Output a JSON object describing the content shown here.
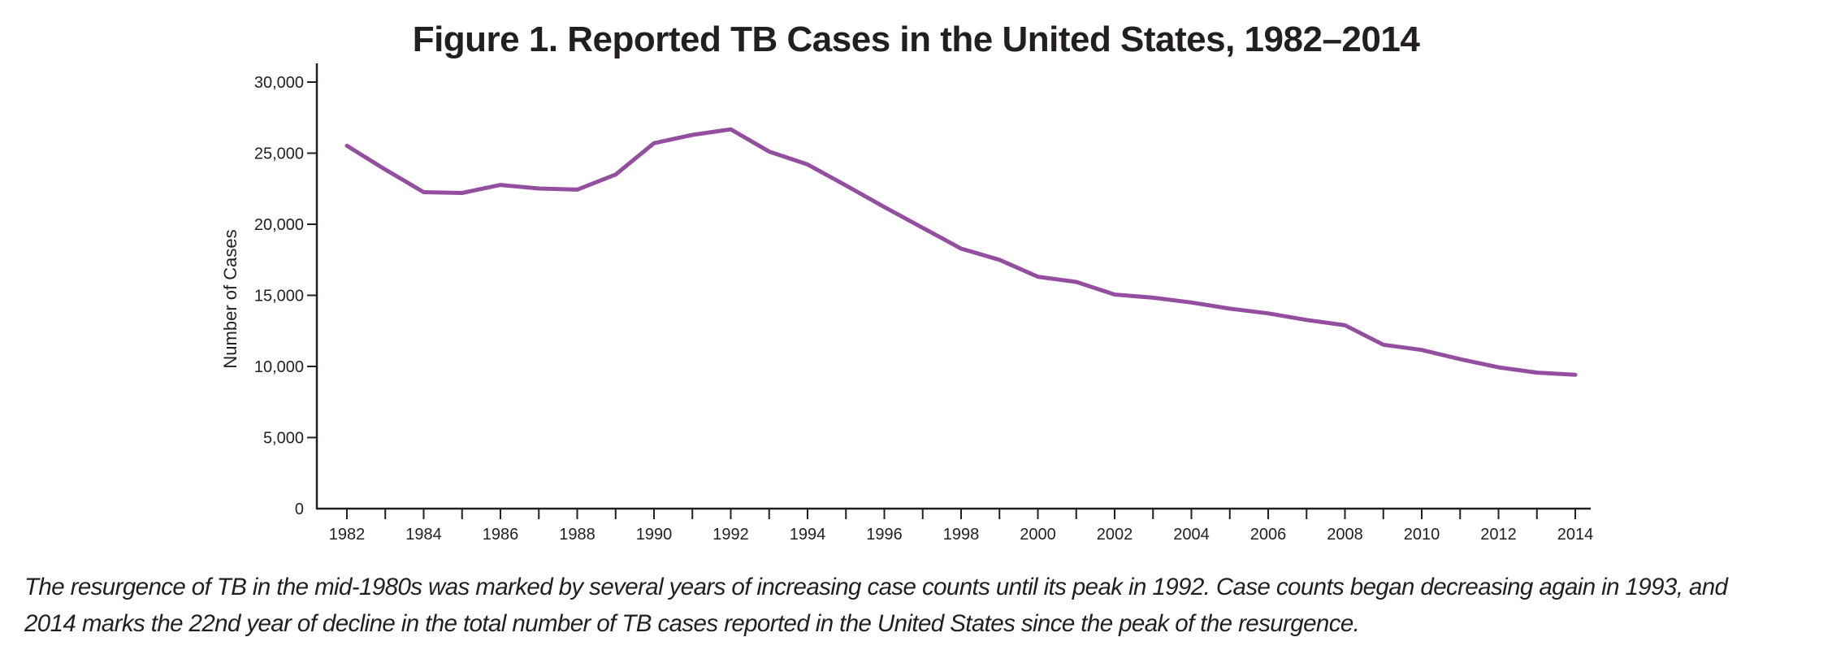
{
  "chart_data": {
    "type": "line",
    "title": "Figure 1. Reported TB Cases in the United States, 1982–2014",
    "xlabel": "",
    "ylabel": "Number of Cases",
    "xlim": [
      1982,
      2014
    ],
    "ylim": [
      0,
      30000
    ],
    "grid": false,
    "legend": "none",
    "x_ticks": [
      1982,
      1983,
      1984,
      1985,
      1986,
      1987,
      1988,
      1989,
      1990,
      1991,
      1992,
      1993,
      1994,
      1995,
      1996,
      1997,
      1998,
      1999,
      2000,
      2001,
      2002,
      2003,
      2004,
      2005,
      2006,
      2007,
      2008,
      2009,
      2010,
      2011,
      2012,
      2013,
      2014
    ],
    "x_tick_labels": [
      "1982",
      "1984",
      "1986",
      "1988",
      "1990",
      "1992",
      "1994",
      "1996",
      "1998",
      "2000",
      "2002",
      "2004",
      "2006",
      "2008",
      "2010",
      "2012",
      "2014"
    ],
    "y_ticks": [
      0,
      5000,
      10000,
      15000,
      20000,
      25000,
      30000
    ],
    "y_tick_labels": [
      "0",
      "5,000",
      "10,000",
      "15,000",
      "20,000",
      "25,000",
      "30,000"
    ],
    "series": [
      {
        "name": "Reported TB cases",
        "color": "#944ea0",
        "x": [
          1982,
          1983,
          1984,
          1985,
          1986,
          1987,
          1988,
          1989,
          1990,
          1991,
          1992,
          1993,
          1994,
          1995,
          1996,
          1997,
          1998,
          1999,
          2000,
          2001,
          2002,
          2003,
          2004,
          2005,
          2006,
          2007,
          2008,
          2009,
          2010,
          2011,
          2012,
          2013,
          2014
        ],
        "values": [
          25520,
          23846,
          22255,
          22201,
          22768,
          22517,
          22436,
          23495,
          25701,
          26283,
          26673,
          25107,
          24205,
          22727,
          21210,
          19751,
          18286,
          17500,
          16308,
          15945,
          15055,
          14835,
          14499,
          14060,
          13734,
          13270,
          12898,
          11523,
          11161,
          10510,
          9940,
          9565,
          9412
        ]
      }
    ]
  },
  "caption": {
    "line1": "The resurgence of TB in the mid-1980s was marked by several years of increasing case counts until its peak in 1992. Case counts began decreasing again in 1993, and",
    "line2": "2014 marks the 22nd year of decline in the total number of TB cases reported in the United States since the peak of the resurgence."
  },
  "colors": {
    "axis": "#231f20",
    "line": "#944ea0",
    "text": "#231f20"
  }
}
